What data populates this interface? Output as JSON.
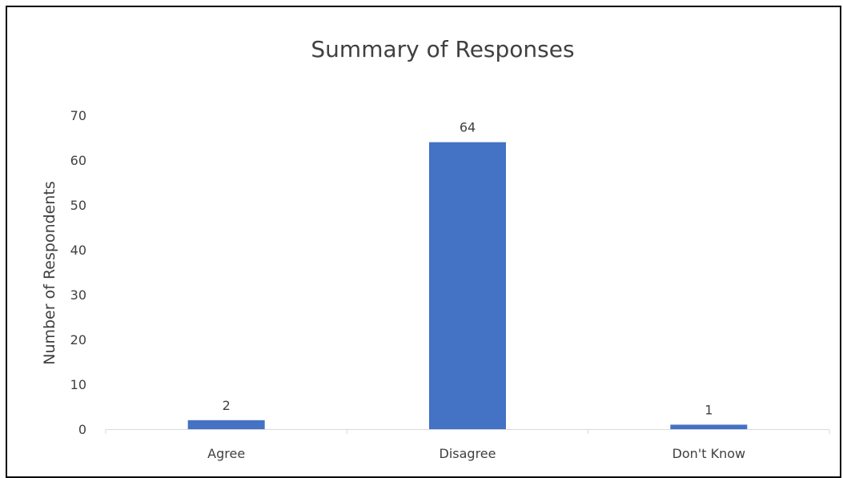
{
  "chart_data": {
    "type": "bar",
    "title": "Summary of Responses",
    "xlabel": "",
    "ylabel": "Number of Respondents",
    "categories": [
      "Agree",
      "Disagree",
      "Don't Know"
    ],
    "values": [
      2,
      64,
      1
    ],
    "data_labels": [
      "2",
      "64",
      "1"
    ],
    "ylim": [
      0,
      70
    ],
    "yticks": [
      0,
      10,
      20,
      30,
      40,
      50,
      60,
      70
    ],
    "grid": false,
    "legend": "none",
    "bar_color": "#4472C4"
  }
}
